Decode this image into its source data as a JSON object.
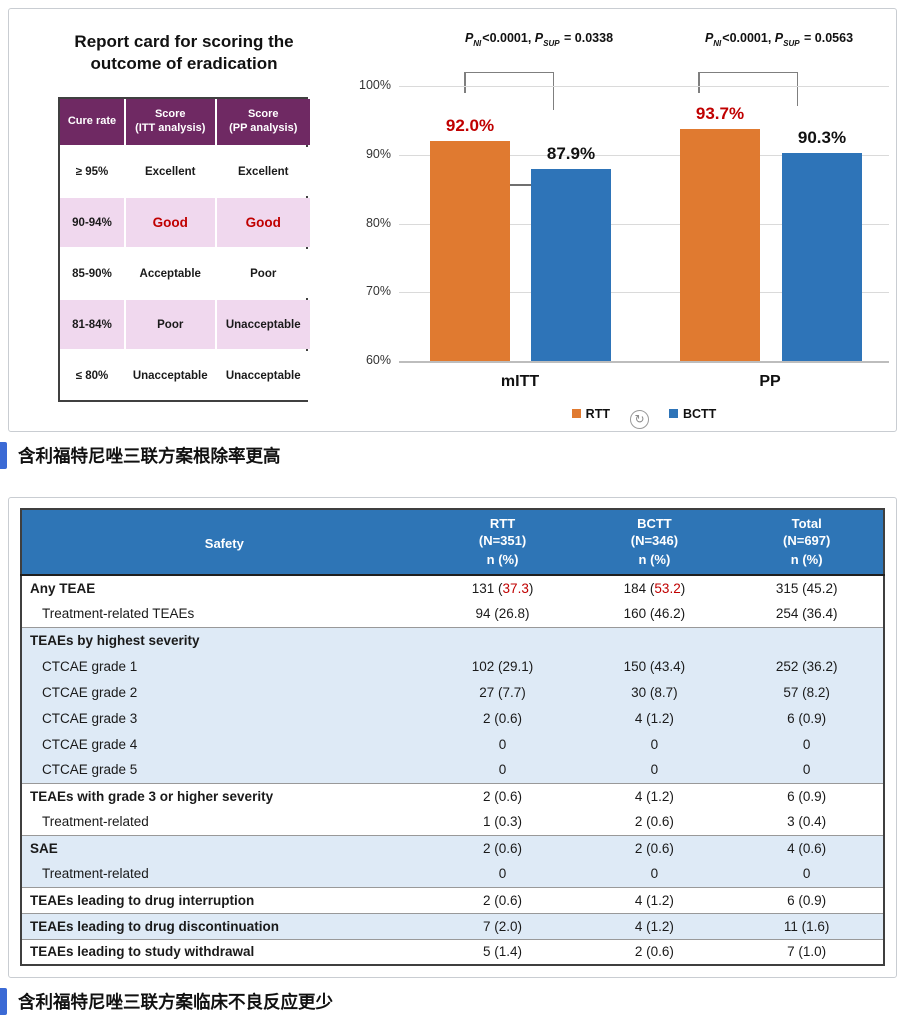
{
  "report_card": {
    "title_line1": "Report card for scoring the",
    "title_line2": "outcome of eradication",
    "headers": [
      {
        "l1": "Cure rate",
        "l2": ""
      },
      {
        "l1": "Score",
        "l2": "(ITT analysis)"
      },
      {
        "l1": "Score",
        "l2": "(PP analysis)"
      }
    ],
    "rows": [
      {
        "rate": "≥ 95%",
        "itt": "Excellent",
        "pp": "Excellent",
        "pink": false,
        "red": false
      },
      {
        "rate": "90-94%",
        "itt": "Good",
        "pp": "Good",
        "pink": true,
        "red": true
      },
      {
        "rate": "85-90%",
        "itt": "Acceptable",
        "pp": "Poor",
        "pink": false,
        "red": false
      },
      {
        "rate": "81-84%",
        "itt": "Poor",
        "pp": "Unacceptable",
        "pink": true,
        "red": false
      },
      {
        "rate": "≤ 80%",
        "itt": "Unacceptable",
        "pp": "Unacceptable",
        "pink": false,
        "red": false
      }
    ],
    "colors": {
      "header_bg": "#6F2963",
      "pink_row": "#F0D8EE",
      "red_text": "#C00000"
    }
  },
  "chart_data": {
    "type": "bar",
    "categories": [
      "mITT",
      "PP"
    ],
    "series": [
      {
        "name": "RTT",
        "color": "#E07A30",
        "values": [
          92.0,
          93.7
        ],
        "labels": [
          "92.0%",
          "93.7%"
        ],
        "label_color": "#C00000"
      },
      {
        "name": "BCTT",
        "color": "#2E74B8",
        "values": [
          87.9,
          90.3
        ],
        "labels": [
          "87.9%",
          "90.3%"
        ],
        "label_color": "#111111"
      }
    ],
    "ylim": [
      60,
      100
    ],
    "yticks": [
      {
        "v": 100,
        "label": "100%"
      },
      {
        "v": 90,
        "label": "90%"
      },
      {
        "v": 80,
        "label": "80%"
      },
      {
        "v": 70,
        "label": "70%"
      },
      {
        "v": 60,
        "label": "60%"
      }
    ],
    "grid": true,
    "legend_position": "bottom",
    "margin_tick": {
      "group": 0,
      "value": 85.7
    },
    "annotations": [
      {
        "p1": "P",
        "s1": "NI",
        "t1": "<0.0001, ",
        "p2": "P",
        "s2": "SUP",
        "t2": " = 0.0338"
      },
      {
        "p1": "P",
        "s1": "NI",
        "t1": "<0.0001, ",
        "p2": "P",
        "s2": "SUP",
        "t2": " = 0.0563"
      }
    ],
    "legend": [
      {
        "name": "RTT",
        "color": "#E07A30"
      },
      {
        "name": "BCTT",
        "color": "#2E74B8"
      }
    ]
  },
  "icons": {
    "refresh": "↻"
  },
  "captions": {
    "first": "含利福特尼唑三联方案根除率更高",
    "second": "含利福特尼唑三联方案临床不良反应更少",
    "accent_color": "#3B6AD5"
  },
  "safety_table": {
    "header": {
      "col0": "Safety",
      "cols": [
        {
          "name": "RTT",
          "n": "(N=351)",
          "sub": "n (%)"
        },
        {
          "name": "BCTT",
          "n": "(N=346)",
          "sub": "n (%)"
        },
        {
          "name": "Total",
          "n": "(N=697)",
          "sub": "n (%)"
        }
      ]
    },
    "rows": [
      {
        "label": "Any TEAE",
        "bold": true,
        "indent": false,
        "blue": false,
        "sec": true,
        "cells": [
          {
            "pre": "131 (",
            "red": "37.3",
            "post": ")"
          },
          {
            "pre": "184 (",
            "red": "53.2",
            "post": ")"
          },
          "315 (45.2)"
        ]
      },
      {
        "label": "Treatment-related TEAEs",
        "bold": false,
        "indent": true,
        "blue": false,
        "sec": false,
        "cells": [
          "94 (26.8)",
          "160 (46.2)",
          "254 (36.4)"
        ]
      },
      {
        "label": "TEAEs by highest severity",
        "bold": true,
        "indent": false,
        "blue": true,
        "sec": true,
        "cells": [
          "",
          "",
          ""
        ]
      },
      {
        "label": "CTCAE grade 1",
        "bold": false,
        "indent": true,
        "blue": true,
        "sec": false,
        "cells": [
          "102 (29.1)",
          "150 (43.4)",
          "252 (36.2)"
        ]
      },
      {
        "label": "CTCAE grade 2",
        "bold": false,
        "indent": true,
        "blue": true,
        "sec": false,
        "cells": [
          "27 (7.7)",
          "30 (8.7)",
          "57 (8.2)"
        ]
      },
      {
        "label": "CTCAE grade 3",
        "bold": false,
        "indent": true,
        "blue": true,
        "sec": false,
        "cells": [
          "2 (0.6)",
          "4 (1.2)",
          "6 (0.9)"
        ]
      },
      {
        "label": "CTCAE grade 4",
        "bold": false,
        "indent": true,
        "blue": true,
        "sec": false,
        "cells": [
          "0",
          "0",
          "0"
        ]
      },
      {
        "label": "CTCAE grade 5",
        "bold": false,
        "indent": true,
        "blue": true,
        "sec": false,
        "cells": [
          "0",
          "0",
          "0"
        ]
      },
      {
        "label": "TEAEs with grade 3 or higher severity",
        "bold": true,
        "indent": false,
        "blue": false,
        "sec": true,
        "cells": [
          "2 (0.6)",
          "4 (1.2)",
          "6 (0.9)"
        ]
      },
      {
        "label": "Treatment-related",
        "bold": false,
        "indent": true,
        "blue": false,
        "sec": false,
        "cells": [
          "1 (0.3)",
          "2 (0.6)",
          "3 (0.4)"
        ]
      },
      {
        "label": "SAE",
        "bold": true,
        "indent": false,
        "blue": true,
        "sec": true,
        "cells": [
          "2 (0.6)",
          "2 (0.6)",
          "4 (0.6)"
        ]
      },
      {
        "label": "Treatment-related",
        "bold": false,
        "indent": true,
        "blue": true,
        "sec": false,
        "cells": [
          "0",
          "0",
          "0"
        ]
      },
      {
        "label": "TEAEs leading to drug interruption",
        "bold": true,
        "indent": false,
        "blue": false,
        "sec": true,
        "cells": [
          "2 (0.6)",
          "4 (1.2)",
          "6 (0.9)"
        ]
      },
      {
        "label": "TEAEs leading to drug discontinuation",
        "bold": true,
        "indent": false,
        "blue": true,
        "sec": true,
        "cells": [
          "7 (2.0)",
          "4 (1.2)",
          "11 (1.6)"
        ]
      },
      {
        "label": "TEAEs leading to study withdrawal",
        "bold": true,
        "indent": false,
        "blue": false,
        "sec": true,
        "cells": [
          "5 (1.4)",
          "2 (0.6)",
          "7 (1.0)"
        ]
      }
    ]
  }
}
